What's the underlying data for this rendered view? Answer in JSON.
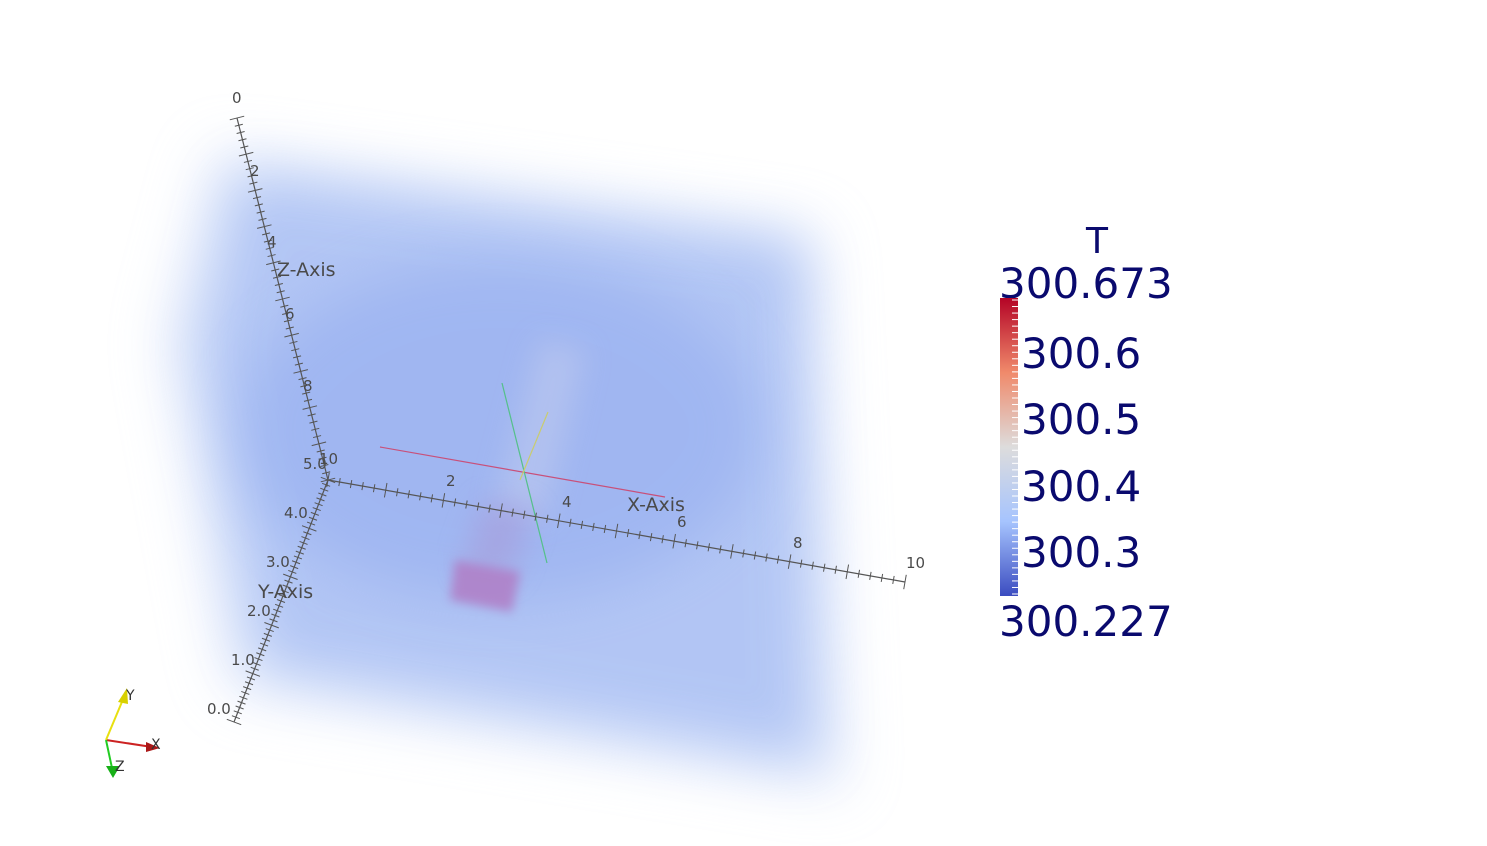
{
  "scalar_bar": {
    "title": "T",
    "max_label": "300.673",
    "min_label": "300.227",
    "tick_labels": [
      "300.6",
      "300.5",
      "300.4",
      "300.3"
    ],
    "colors": [
      "#b40426",
      "#f08a6b",
      "#dddcdc",
      "#a6c4fe",
      "#3b4cc0"
    ]
  },
  "cube_axes": {
    "x": {
      "title": "X-Axis",
      "ticks": [
        "2",
        "4",
        "6",
        "8",
        "10"
      ]
    },
    "y": {
      "title": "Y-Axis",
      "ticks": [
        "0.0",
        "1.0",
        "2.0",
        "3.0",
        "4.0",
        "5.0"
      ]
    },
    "z": {
      "title": "Z-Axis",
      "ticks": [
        "0",
        "2",
        "4",
        "6",
        "8",
        "10"
      ]
    }
  },
  "orientation_axes": {
    "x": {
      "label": "X",
      "color": "#cc2222"
    },
    "y": {
      "label": "Y",
      "color": "#e8e010"
    },
    "z": {
      "label": "Z",
      "color": "#22cc22"
    }
  },
  "colors": {
    "volume": "#8aa8f0",
    "source_block": "#b080c8",
    "axis": "#555555"
  }
}
